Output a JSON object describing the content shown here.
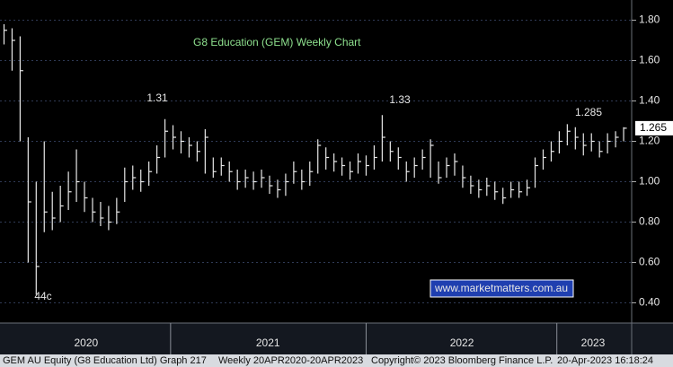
{
  "chart_data": {
    "type": "hlc",
    "title": "G8 Education (GEM) Weekly Chart",
    "series": [
      {
        "color": "#e8e8e8",
        "high": [
          1.78,
          1.76,
          1.72,
          1.22,
          1.0,
          1.2,
          0.95,
          0.98,
          1.05,
          1.16,
          1.0,
          0.92,
          0.9,
          0.88,
          0.92,
          1.07,
          1.08,
          1.06,
          1.1,
          1.18,
          1.31,
          1.28,
          1.25,
          1.22,
          1.2,
          1.26,
          1.12,
          1.12,
          1.1,
          1.06,
          1.06,
          1.05,
          1.06,
          1.03,
          1.01,
          1.04,
          1.1,
          1.06,
          1.1,
          1.21,
          1.17,
          1.14,
          1.12,
          1.1,
          1.14,
          1.13,
          1.18,
          1.33,
          1.2,
          1.17,
          1.1,
          1.12,
          1.16,
          1.21,
          1.1,
          1.12,
          1.14,
          1.08,
          1.03,
          1.01,
          1.02,
          1.0,
          0.97,
          1.0,
          1.0,
          1.01,
          1.12,
          1.16,
          1.2,
          1.25,
          1.285,
          1.27,
          1.24,
          1.24,
          1.2,
          1.24,
          1.25,
          1.27
        ],
        "low": [
          1.68,
          1.55,
          1.2,
          0.6,
          0.44,
          0.75,
          0.76,
          0.8,
          0.86,
          0.9,
          0.85,
          0.8,
          0.78,
          0.76,
          0.79,
          0.9,
          0.96,
          0.95,
          0.98,
          1.04,
          1.12,
          1.16,
          1.14,
          1.12,
          1.1,
          1.04,
          1.02,
          1.03,
          1.0,
          0.96,
          0.97,
          0.96,
          0.97,
          0.94,
          0.92,
          0.93,
          0.99,
          0.96,
          0.98,
          1.04,
          1.06,
          1.05,
          1.03,
          1.01,
          1.04,
          1.03,
          1.06,
          1.1,
          1.1,
          1.06,
          1.0,
          1.02,
          1.06,
          1.02,
          0.99,
          1.02,
          1.03,
          0.97,
          0.94,
          0.92,
          0.93,
          0.91,
          0.89,
          0.92,
          0.92,
          0.93,
          0.97,
          1.06,
          1.1,
          1.14,
          1.18,
          1.16,
          1.13,
          1.15,
          1.12,
          1.14,
          1.17,
          1.2
        ],
        "close": [
          1.75,
          1.7,
          1.55,
          0.9,
          0.58,
          0.85,
          0.82,
          0.88,
          0.95,
          1.0,
          0.92,
          0.85,
          0.82,
          0.8,
          0.85,
          1.0,
          1.02,
          1.0,
          1.05,
          1.12,
          1.25,
          1.22,
          1.2,
          1.18,
          1.15,
          1.22,
          1.05,
          1.08,
          1.05,
          1.0,
          1.02,
          1.0,
          1.02,
          0.98,
          0.96,
          1.0,
          1.05,
          1.0,
          1.05,
          1.18,
          1.12,
          1.1,
          1.08,
          1.05,
          1.1,
          1.08,
          1.12,
          1.22,
          1.15,
          1.12,
          1.05,
          1.08,
          1.12,
          1.18,
          1.02,
          1.08,
          1.1,
          1.02,
          0.98,
          0.96,
          0.98,
          0.95,
          0.92,
          0.96,
          0.95,
          0.97,
          1.08,
          1.12,
          1.15,
          1.2,
          1.25,
          1.22,
          1.18,
          1.2,
          1.15,
          1.2,
          1.22,
          1.265
        ]
      }
    ],
    "xlim": [
      -0.5,
      78
    ],
    "xticks": [
      {
        "value": 10.2,
        "label": "2020"
      },
      {
        "value": 32.8,
        "label": "2021"
      },
      {
        "value": 56.9,
        "label": "2022"
      },
      {
        "value": 73.2,
        "label": "2023"
      }
    ],
    "year_boundaries": [
      20.7,
      45,
      68.7
    ],
    "ylim": [
      0.3,
      1.9
    ],
    "yticks": [
      {
        "value": 0.4,
        "label": "0.40"
      },
      {
        "value": 0.6,
        "label": "0.60"
      },
      {
        "value": 0.8,
        "label": "0.80"
      },
      {
        "value": 1.0,
        "label": "1.00"
      },
      {
        "value": 1.2,
        "label": "1.20"
      },
      {
        "value": 1.4,
        "label": "1.40"
      },
      {
        "value": 1.6,
        "label": "1.60"
      },
      {
        "value": 1.8,
        "label": "1.80"
      }
    ],
    "grid": true,
    "annotations": [
      "1.31",
      "1.33",
      "1.285",
      "44c"
    ],
    "watermark": "www.marketmatters.com.au",
    "footer": [
      "GEM AU Equity (G8 Education Ltd) Graph 217",
      "Weekly 20APR2020-20APR2023",
      "Copyright© 2023 Bloomberg Finance L.P.",
      "20-Apr-2023 16:18:24"
    ]
  }
}
